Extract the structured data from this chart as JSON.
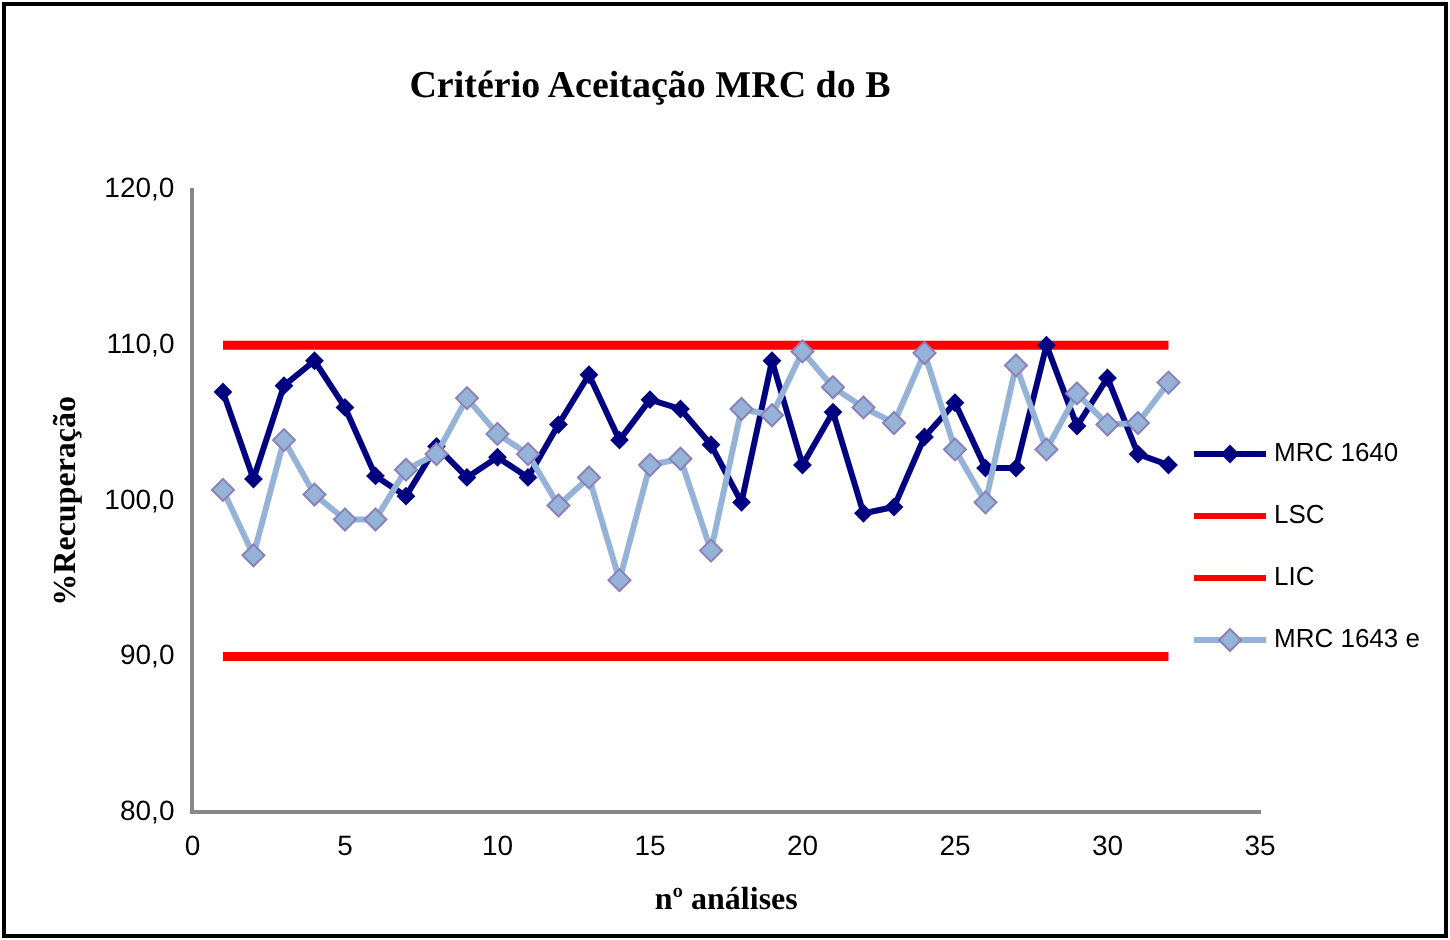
{
  "chart_data": {
    "type": "line",
    "title": "Critério Aceitação MRC do B",
    "xlabel": "nº análises",
    "ylabel": "%Recuperação",
    "x": [
      1,
      2,
      3,
      4,
      5,
      6,
      7,
      8,
      9,
      10,
      11,
      12,
      13,
      14,
      15,
      16,
      17,
      18,
      19,
      20,
      21,
      22,
      23,
      24,
      25,
      26,
      27,
      28,
      29,
      30,
      31,
      32
    ],
    "series": [
      {
        "name": "MRC 1640",
        "color": "#000080",
        "marker": "diamond",
        "values": [
          107.0,
          101.4,
          107.4,
          109.0,
          106.0,
          101.6,
          100.3,
          103.5,
          101.5,
          102.8,
          101.5,
          104.9,
          108.1,
          103.9,
          106.5,
          105.9,
          103.6,
          99.9,
          109.0,
          102.3,
          105.7,
          99.2,
          99.6,
          104.1,
          106.3,
          102.1,
          102.1,
          110.0,
          104.8,
          107.9,
          103.0,
          102.3
        ]
      },
      {
        "name": "LSC",
        "color": "#ff0000",
        "marker": "none",
        "values": [
          110,
          110,
          110,
          110,
          110,
          110,
          110,
          110,
          110,
          110,
          110,
          110,
          110,
          110,
          110,
          110,
          110,
          110,
          110,
          110,
          110,
          110,
          110,
          110,
          110,
          110,
          110,
          110,
          110,
          110,
          110,
          110
        ]
      },
      {
        "name": "LIC",
        "color": "#ff0000",
        "marker": "none",
        "values": [
          90,
          90,
          90,
          90,
          90,
          90,
          90,
          90,
          90,
          90,
          90,
          90,
          90,
          90,
          90,
          90,
          90,
          90,
          90,
          90,
          90,
          90,
          90,
          90,
          90,
          90,
          90,
          90,
          90,
          90,
          90,
          90
        ]
      },
      {
        "name": "MRC 1643 e",
        "color": "#95b3d7",
        "marker": "diamond",
        "values": [
          100.7,
          96.5,
          103.9,
          100.4,
          98.8,
          98.8,
          102.0,
          103.0,
          106.6,
          104.3,
          103.0,
          99.7,
          101.5,
          94.9,
          102.3,
          102.7,
          96.8,
          105.9,
          105.5,
          109.6,
          107.3,
          106.0,
          105.0,
          109.5,
          103.3,
          99.9,
          108.7,
          103.3,
          106.9,
          104.9,
          105.0,
          107.6
        ]
      }
    ],
    "xlim": [
      0,
      35
    ],
    "xticks": [
      0,
      5,
      10,
      15,
      20,
      25,
      30,
      35
    ],
    "ylim": [
      80,
      120
    ],
    "yticks": [
      {
        "value": 80,
        "label": "80,0"
      },
      {
        "value": 90,
        "label": "90,0"
      },
      {
        "value": 100,
        "label": "100,0"
      },
      {
        "value": 110,
        "label": "110,0"
      },
      {
        "value": 120,
        "label": "120,0"
      }
    ],
    "grid": false,
    "legend": "right",
    "line_style": "solid"
  }
}
